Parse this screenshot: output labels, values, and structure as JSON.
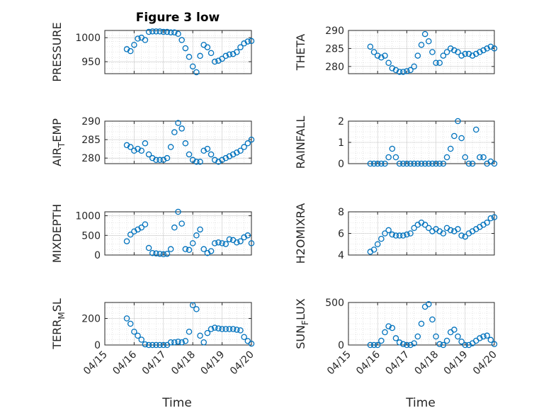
{
  "figure_title": "Figure 3 low",
  "colors": {
    "marker": "#0072BD",
    "axis": "#262626"
  },
  "chart_data": [
    {
      "type": "scatter",
      "title": "Figure 3 low",
      "ylabel": "PRESSURE",
      "ylim": [
        925,
        1015
      ],
      "yticks": [
        950,
        1000
      ],
      "grid": true,
      "x": [
        "04/15 18:00",
        "04/15 21:00",
        "04/16 00:00",
        "04/16 03:00",
        "04/16 06:00",
        "04/16 09:00",
        "04/16 12:00",
        "04/16 15:00",
        "04/16 18:00",
        "04/16 21:00",
        "04/17 00:00",
        "04/17 03:00",
        "04/17 06:00",
        "04/17 09:00",
        "04/17 12:00",
        "04/17 15:00",
        "04/17 18:00",
        "04/17 21:00",
        "04/18 00:00",
        "04/18 03:00",
        "04/18 06:00",
        "04/18 09:00",
        "04/18 12:00",
        "04/18 15:00",
        "04/18 18:00",
        "04/18 21:00",
        "04/19 00:00",
        "04/19 03:00",
        "04/19 06:00",
        "04/19 09:00",
        "04/19 12:00",
        "04/19 15:00",
        "04/19 18:00",
        "04/19 21:00",
        "04/20 00:00"
      ],
      "y": [
        976,
        972,
        985,
        998,
        1000,
        995,
        1012,
        1013,
        1013,
        1013,
        1012,
        1012,
        1011,
        1011,
        1008,
        995,
        978,
        960,
        940,
        928,
        962,
        985,
        980,
        968,
        950,
        952,
        956,
        962,
        965,
        966,
        970,
        980,
        988,
        992,
        993
      ]
    },
    {
      "type": "scatter",
      "ylabel": "THETA",
      "ylim": [
        278,
        290
      ],
      "yticks": [
        280,
        285,
        290
      ],
      "grid": true,
      "x": [
        "04/15 18:00",
        "04/15 21:00",
        "04/16 00:00",
        "04/16 03:00",
        "04/16 06:00",
        "04/16 09:00",
        "04/16 12:00",
        "04/16 15:00",
        "04/16 18:00",
        "04/16 21:00",
        "04/17 00:00",
        "04/17 03:00",
        "04/17 06:00",
        "04/17 09:00",
        "04/17 12:00",
        "04/17 15:00",
        "04/17 18:00",
        "04/17 21:00",
        "04/18 00:00",
        "04/18 03:00",
        "04/18 06:00",
        "04/18 09:00",
        "04/18 12:00",
        "04/18 15:00",
        "04/18 18:00",
        "04/18 21:00",
        "04/19 00:00",
        "04/19 03:00",
        "04/19 06:00",
        "04/19 09:00",
        "04/19 12:00",
        "04/19 15:00",
        "04/19 18:00",
        "04/19 21:00",
        "04/20 00:00"
      ],
      "y": [
        285.5,
        284,
        283,
        282.5,
        283,
        281,
        279.5,
        279,
        278.5,
        278.5,
        278.7,
        279,
        280,
        283,
        286,
        289,
        287,
        284,
        281,
        281,
        283,
        284,
        285,
        284.5,
        284,
        283,
        283.5,
        283.5,
        283,
        283.5,
        284,
        284.5,
        285,
        285.5,
        285
      ]
    },
    {
      "type": "scatter",
      "ylabel": "AIR_TEMP",
      "ylim": [
        278.5,
        290
      ],
      "yticks": [
        280,
        285,
        290
      ],
      "grid": true,
      "x": [
        "04/15 18:00",
        "04/15 21:00",
        "04/16 00:00",
        "04/16 03:00",
        "04/16 06:00",
        "04/16 09:00",
        "04/16 12:00",
        "04/16 15:00",
        "04/16 18:00",
        "04/16 21:00",
        "04/17 00:00",
        "04/17 03:00",
        "04/17 06:00",
        "04/17 09:00",
        "04/17 12:00",
        "04/17 15:00",
        "04/17 18:00",
        "04/17 21:00",
        "04/18 00:00",
        "04/18 03:00",
        "04/18 06:00",
        "04/18 09:00",
        "04/18 12:00",
        "04/18 15:00",
        "04/18 18:00",
        "04/18 21:00",
        "04/19 00:00",
        "04/19 03:00",
        "04/19 06:00",
        "04/19 09:00",
        "04/19 12:00",
        "04/19 15:00",
        "04/19 18:00",
        "04/19 21:00",
        "04/20 00:00"
      ],
      "y": [
        283.5,
        283,
        282,
        282.5,
        282,
        284,
        281,
        280,
        279.5,
        279.5,
        279.5,
        280,
        283,
        287,
        289.5,
        288,
        284,
        281,
        279.5,
        279,
        279,
        282,
        282.5,
        281,
        279.5,
        279,
        279.5,
        280,
        280.5,
        281,
        281.5,
        282,
        283,
        284,
        285
      ]
    },
    {
      "type": "scatter",
      "ylabel": "RAINFALL",
      "ylim": [
        0,
        2
      ],
      "yticks": [
        0,
        1,
        2
      ],
      "grid": true,
      "x": [
        "04/15 18:00",
        "04/15 21:00",
        "04/16 00:00",
        "04/16 03:00",
        "04/16 06:00",
        "04/16 09:00",
        "04/16 12:00",
        "04/16 15:00",
        "04/16 18:00",
        "04/16 21:00",
        "04/17 00:00",
        "04/17 03:00",
        "04/17 06:00",
        "04/17 09:00",
        "04/17 12:00",
        "04/17 15:00",
        "04/17 18:00",
        "04/17 21:00",
        "04/18 00:00",
        "04/18 03:00",
        "04/18 06:00",
        "04/18 09:00",
        "04/18 12:00",
        "04/18 15:00",
        "04/18 18:00",
        "04/18 21:00",
        "04/19 00:00",
        "04/19 03:00",
        "04/19 06:00",
        "04/19 09:00",
        "04/19 12:00",
        "04/19 15:00",
        "04/19 18:00",
        "04/19 21:00",
        "04/20 00:00"
      ],
      "y": [
        0,
        0,
        0,
        0,
        0,
        0.3,
        0.7,
        0.3,
        0,
        0,
        0,
        0,
        0,
        0,
        0,
        0,
        0,
        0,
        0,
        0,
        0,
        0.3,
        0.7,
        1.3,
        2,
        1.2,
        0.3,
        0,
        0,
        1.6,
        0.3,
        0.3,
        0,
        0.1,
        0
      ]
    },
    {
      "type": "scatter",
      "ylabel": "MIXDEPTH",
      "ylim": [
        0,
        1100
      ],
      "yticks": [
        0,
        500,
        1000
      ],
      "grid": true,
      "x": [
        "04/15 18:00",
        "04/15 21:00",
        "04/16 00:00",
        "04/16 03:00",
        "04/16 06:00",
        "04/16 09:00",
        "04/16 12:00",
        "04/16 15:00",
        "04/16 18:00",
        "04/16 21:00",
        "04/17 00:00",
        "04/17 03:00",
        "04/17 06:00",
        "04/17 09:00",
        "04/17 12:00",
        "04/17 15:00",
        "04/17 18:00",
        "04/17 21:00",
        "04/18 00:00",
        "04/18 03:00",
        "04/18 06:00",
        "04/18 09:00",
        "04/18 12:00",
        "04/18 15:00",
        "04/18 18:00",
        "04/18 21:00",
        "04/19 00:00",
        "04/19 03:00",
        "04/19 06:00",
        "04/19 09:00",
        "04/19 12:00",
        "04/19 15:00",
        "04/19 18:00",
        "04/19 21:00",
        "04/20 00:00"
      ],
      "y": [
        350,
        520,
        600,
        650,
        700,
        780,
        180,
        50,
        40,
        30,
        20,
        30,
        150,
        700,
        1100,
        800,
        150,
        130,
        300,
        500,
        650,
        150,
        50,
        100,
        300,
        320,
        300,
        280,
        400,
        380,
        320,
        350,
        450,
        500,
        300
      ]
    },
    {
      "type": "scatter",
      "ylabel": "H2OMIXRA",
      "ylim": [
        4,
        8
      ],
      "yticks": [
        4,
        6,
        8
      ],
      "grid": true,
      "x": [
        "04/15 18:00",
        "04/15 21:00",
        "04/16 00:00",
        "04/16 03:00",
        "04/16 06:00",
        "04/16 09:00",
        "04/16 12:00",
        "04/16 15:00",
        "04/16 18:00",
        "04/16 21:00",
        "04/17 00:00",
        "04/17 03:00",
        "04/17 06:00",
        "04/17 09:00",
        "04/17 12:00",
        "04/17 15:00",
        "04/17 18:00",
        "04/17 21:00",
        "04/18 00:00",
        "04/18 03:00",
        "04/18 06:00",
        "04/18 09:00",
        "04/18 12:00",
        "04/18 15:00",
        "04/18 18:00",
        "04/18 21:00",
        "04/19 00:00",
        "04/19 03:00",
        "04/19 06:00",
        "04/19 09:00",
        "04/19 12:00",
        "04/19 15:00",
        "04/19 18:00",
        "04/19 21:00",
        "04/20 00:00"
      ],
      "y": [
        4.3,
        4.5,
        5,
        5.5,
        6,
        6.3,
        5.9,
        5.8,
        5.8,
        5.8,
        5.9,
        6,
        6.5,
        6.8,
        7,
        6.8,
        6.5,
        6.2,
        6.4,
        6.2,
        6,
        6.5,
        6.3,
        6.2,
        6.4,
        5.8,
        5.7,
        6,
        6.2,
        6.4,
        6.6,
        6.8,
        7,
        7.4,
        7.5
      ]
    },
    {
      "type": "scatter",
      "ylabel": "TERR_MSL",
      "ylim": [
        0,
        320
      ],
      "yticks": [
        0,
        200
      ],
      "grid": true,
      "x": [
        "04/15 18:00",
        "04/15 21:00",
        "04/16 00:00",
        "04/16 03:00",
        "04/16 06:00",
        "04/16 09:00",
        "04/16 12:00",
        "04/16 15:00",
        "04/16 18:00",
        "04/16 21:00",
        "04/17 00:00",
        "04/17 03:00",
        "04/17 06:00",
        "04/17 09:00",
        "04/17 12:00",
        "04/17 15:00",
        "04/17 18:00",
        "04/17 21:00",
        "04/18 00:00",
        "04/18 03:00",
        "04/18 06:00",
        "04/18 09:00",
        "04/18 12:00",
        "04/18 15:00",
        "04/18 18:00",
        "04/18 21:00",
        "04/19 00:00",
        "04/19 03:00",
        "04/19 06:00",
        "04/19 09:00",
        "04/19 12:00",
        "04/19 15:00",
        "04/19 18:00",
        "04/19 21:00",
        "04/20 00:00"
      ],
      "y": [
        200,
        160,
        100,
        70,
        40,
        5,
        0,
        0,
        0,
        0,
        0,
        0,
        20,
        20,
        25,
        20,
        30,
        100,
        300,
        270,
        70,
        20,
        90,
        120,
        130,
        125,
        120,
        120,
        120,
        120,
        115,
        110,
        60,
        30,
        10
      ]
    },
    {
      "type": "scatter",
      "ylabel": "SUN_FLUX",
      "ylim": [
        0,
        500
      ],
      "yticks": [
        0,
        500
      ],
      "grid": true,
      "x": [
        "04/15 18:00",
        "04/15 21:00",
        "04/16 00:00",
        "04/16 03:00",
        "04/16 06:00",
        "04/16 09:00",
        "04/16 12:00",
        "04/16 15:00",
        "04/16 18:00",
        "04/16 21:00",
        "04/17 00:00",
        "04/17 03:00",
        "04/17 06:00",
        "04/17 09:00",
        "04/17 12:00",
        "04/17 15:00",
        "04/17 18:00",
        "04/17 21:00",
        "04/18 00:00",
        "04/18 03:00",
        "04/18 06:00",
        "04/18 09:00",
        "04/18 12:00",
        "04/18 15:00",
        "04/18 18:00",
        "04/18 21:00",
        "04/19 00:00",
        "04/19 03:00",
        "04/19 06:00",
        "04/19 09:00",
        "04/19 12:00",
        "04/19 15:00",
        "04/19 18:00",
        "04/19 21:00",
        "04/20 00:00"
      ],
      "y": [
        0,
        0,
        0,
        50,
        150,
        220,
        200,
        80,
        30,
        10,
        0,
        0,
        20,
        100,
        250,
        450,
        480,
        300,
        100,
        10,
        0,
        50,
        150,
        180,
        100,
        40,
        0,
        0,
        20,
        50,
        80,
        100,
        110,
        60,
        10
      ]
    }
  ],
  "xaxis": {
    "label": "Time",
    "ticks": [
      "04/15",
      "04/16",
      "04/17",
      "04/18",
      "04/19",
      "04/20"
    ],
    "range": [
      "04/15 00:00",
      "04/20 00:00"
    ]
  }
}
